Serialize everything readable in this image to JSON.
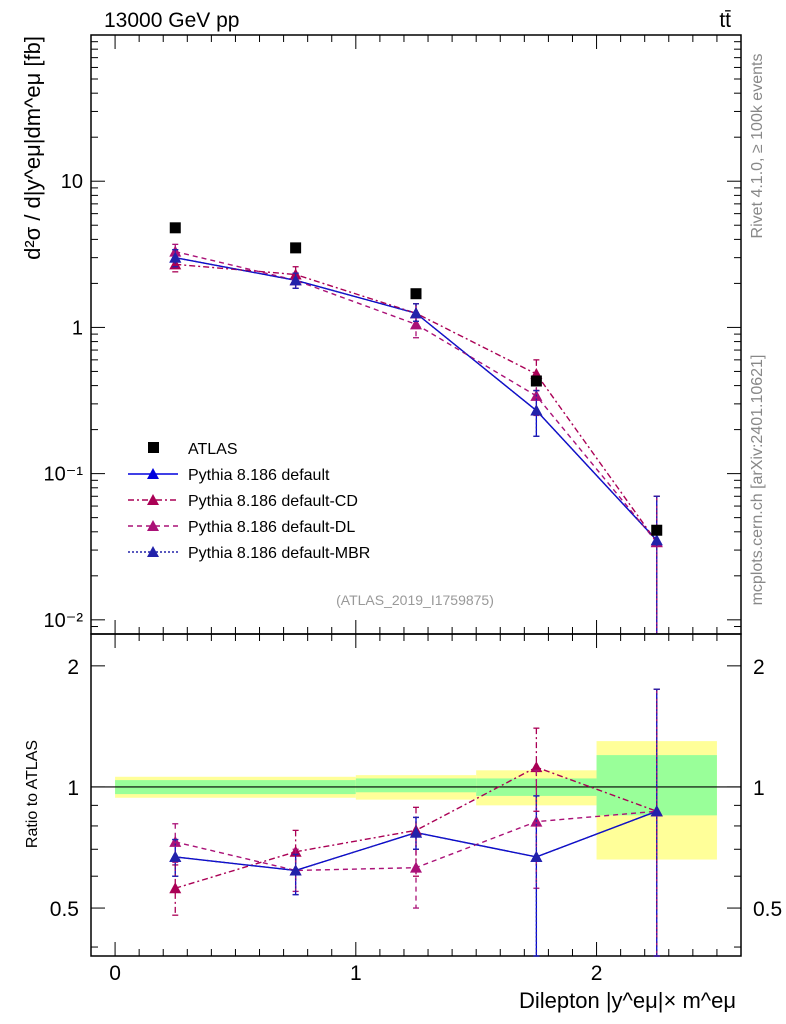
{
  "header": {
    "energy_label": "13000 GeV pp",
    "process_label": "tt̄"
  },
  "side_labels": {
    "rivet": "Rivet 4.1.0, ≥ 100k events",
    "mcplots": "mcplots.cern.ch [arXiv:2401.10621]"
  },
  "colors": {
    "data": "#000000",
    "default": "#0000dd",
    "cd": "#aa0055",
    "dl": "#aa1177",
    "mbr": "#2222aa",
    "band_inner": "#99ff99",
    "band_outer": "#ffff99"
  },
  "chart_data": [
    {
      "type": "scatter",
      "panel": "main",
      "title": "13000 GeV pp",
      "ylabel": "d²σ / d|y^eμ|dm^eμ [fb]",
      "xlabel": "",
      "yscale": "log",
      "xlim": [
        -0.1,
        2.6
      ],
      "ylim": [
        0.008,
        100
      ],
      "y_ticks": [
        {
          "value": 0.01,
          "label": "10⁻²"
        },
        {
          "value": 0.1,
          "label": "10⁻¹"
        },
        {
          "value": 1,
          "label": "1"
        },
        {
          "value": 10,
          "label": "10"
        }
      ],
      "watermark": "(ATLAS_2019_I1759875)",
      "legend": [
        {
          "key": "data",
          "label": "ATLAS"
        },
        {
          "key": "default",
          "label": "Pythia 8.186 default"
        },
        {
          "key": "cd",
          "label": "Pythia 8.186 default-CD"
        },
        {
          "key": "dl",
          "label": "Pythia 8.186 default-DL"
        },
        {
          "key": "mbr",
          "label": "Pythia 8.186 default-MBR"
        }
      ],
      "x": [
        0.25,
        0.75,
        1.25,
        1.75,
        2.25
      ],
      "series": [
        {
          "name": "ATLAS",
          "key": "data",
          "values": [
            4.8,
            3.5,
            1.7,
            0.43,
            0.041
          ]
        },
        {
          "name": "Pythia 8.186 default",
          "key": "default",
          "values": [
            3.0,
            2.1,
            1.25,
            0.27,
            0.035
          ],
          "err_lo": [
            2.6,
            1.85,
            1.1,
            0.18,
            0.0
          ],
          "err_hi": [
            3.4,
            2.35,
            1.45,
            0.37,
            0.07
          ]
        },
        {
          "name": "Pythia 8.186 default-CD",
          "key": "cd",
          "values": [
            2.7,
            2.3,
            1.25,
            0.48,
            0.034
          ],
          "err_lo": [
            2.4,
            2.0,
            1.05,
            0.37,
            0.0
          ],
          "err_hi": [
            3.0,
            2.6,
            1.45,
            0.6,
            0.07
          ]
        },
        {
          "name": "Pythia 8.186 default-DL",
          "key": "dl",
          "values": [
            3.3,
            2.1,
            1.05,
            0.34,
            0.034
          ],
          "err_lo": [
            2.95,
            1.85,
            0.85,
            0.25,
            0.0
          ],
          "err_hi": [
            3.7,
            2.35,
            1.25,
            0.45,
            0.07
          ]
        },
        {
          "name": "Pythia 8.186 default-MBR",
          "key": "mbr",
          "values": [
            3.0,
            2.1,
            1.25,
            0.27,
            0.035
          ],
          "err_lo": [
            2.6,
            1.85,
            1.1,
            0.18,
            0.0
          ],
          "err_hi": [
            3.4,
            2.35,
            1.45,
            0.37,
            0.07
          ]
        }
      ]
    },
    {
      "type": "scatter",
      "panel": "ratio",
      "xlabel": "Dilepton |y^eμ|× m^eμ",
      "ylabel": "Ratio to ATLAS",
      "yscale": "log",
      "xlim": [
        -0.1,
        2.6
      ],
      "ylim": [
        0.38,
        2.4
      ],
      "x_ticks": [
        {
          "value": 0,
          "label": "0"
        },
        {
          "value": 1,
          "label": "1"
        },
        {
          "value": 2,
          "label": "2"
        }
      ],
      "y_ticks": [
        {
          "value": 0.5,
          "label": "0.5"
        },
        {
          "value": 1,
          "label": "1"
        },
        {
          "value": 2,
          "label": "2"
        }
      ],
      "bands": [
        {
          "x0": 0.0,
          "x1": 1.0,
          "inner": [
            0.96,
            1.04
          ],
          "outer": [
            0.94,
            1.06
          ]
        },
        {
          "x0": 1.0,
          "x1": 1.5,
          "inner": [
            0.97,
            1.05
          ],
          "outer": [
            0.93,
            1.07
          ]
        },
        {
          "x0": 1.5,
          "x1": 2.0,
          "inner": [
            0.95,
            1.05
          ],
          "outer": [
            0.9,
            1.1
          ]
        },
        {
          "x0": 2.0,
          "x1": 2.5,
          "inner": [
            0.85,
            1.2
          ],
          "outer": [
            0.66,
            1.3
          ]
        }
      ],
      "x": [
        0.25,
        0.75,
        1.25,
        1.75,
        2.25
      ],
      "series": [
        {
          "name": "Pythia 8.186 default",
          "key": "default",
          "values": [
            0.67,
            0.62,
            0.77,
            0.67,
            0.87
          ],
          "err_lo": [
            0.6,
            0.54,
            0.7,
            0.36,
            0.3
          ],
          "err_hi": [
            0.74,
            0.68,
            0.84,
            0.95,
            1.75
          ]
        },
        {
          "name": "Pythia 8.186 default-CD",
          "key": "cd",
          "values": [
            0.56,
            0.69,
            0.78,
            1.12,
            0.87
          ],
          "err_lo": [
            0.48,
            0.61,
            0.6,
            0.87,
            0.3
          ],
          "err_hi": [
            0.64,
            0.78,
            0.89,
            1.4,
            1.75
          ]
        },
        {
          "name": "Pythia 8.186 default-DL",
          "key": "dl",
          "values": [
            0.73,
            0.62,
            0.63,
            0.82,
            0.87
          ],
          "err_lo": [
            0.65,
            0.55,
            0.5,
            0.56,
            0.3
          ],
          "err_hi": [
            0.81,
            0.7,
            0.77,
            1.1,
            1.75
          ]
        },
        {
          "name": "Pythia 8.186 default-MBR",
          "key": "mbr",
          "values": [
            0.67,
            0.62,
            0.77,
            0.67,
            0.87
          ],
          "err_lo": [
            0.6,
            0.54,
            0.7,
            0.36,
            0.3
          ],
          "err_hi": [
            0.74,
            0.68,
            0.84,
            0.95,
            1.75
          ]
        }
      ]
    }
  ]
}
